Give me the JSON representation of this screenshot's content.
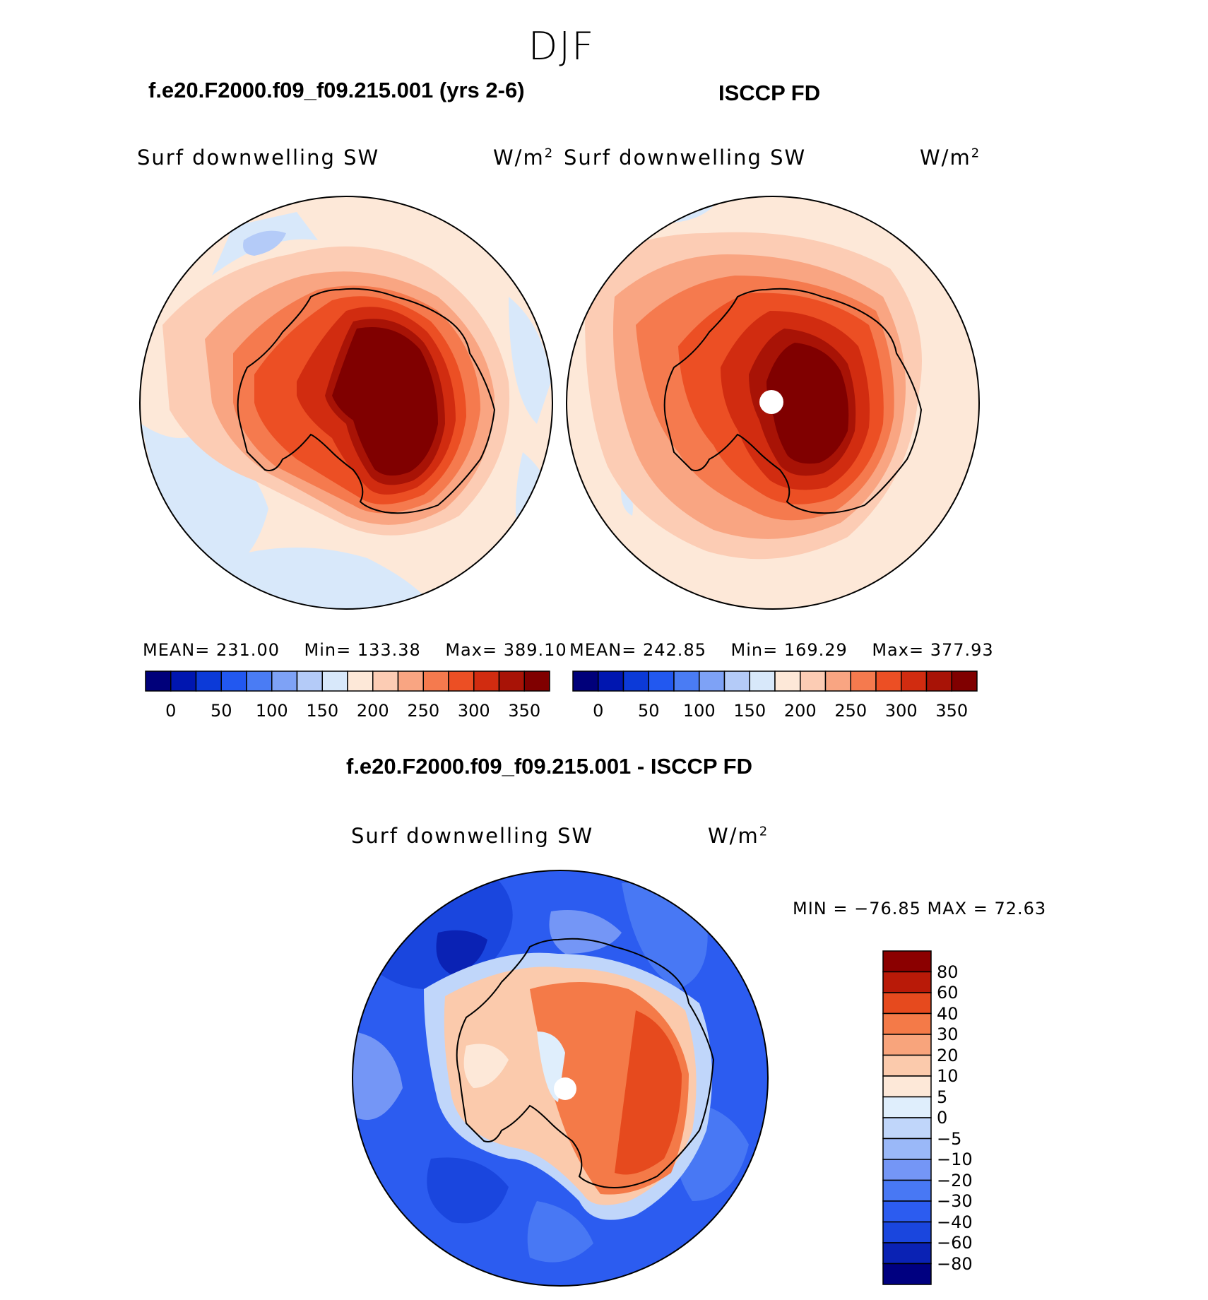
{
  "figure": {
    "season": "DJF"
  },
  "panels": {
    "model": {
      "title": "f.e20.F2000.f09_f09.215.001 (yrs 2-6)",
      "variable": "Surf downwelling SW",
      "units": "W/m",
      "units_exp": "2",
      "mean_label": "MEAN=",
      "mean": "231.00",
      "min_label": "Min=",
      "min": "133.38",
      "max_label": "Max=",
      "max": "389.10"
    },
    "obs": {
      "title": "ISCCP FD",
      "variable": "Surf downwelling SW",
      "units": "W/m",
      "units_exp": "2",
      "mean_label": "MEAN=",
      "mean": "242.85",
      "min_label": "Min=",
      "min": "169.29",
      "max_label": "Max=",
      "max": "377.93"
    },
    "diff": {
      "title": "f.e20.F2000.f09_f09.215.001 - ISCCP FD",
      "variable": "Surf downwelling SW",
      "units": "W/m",
      "units_exp": "2",
      "stats_text": "MIN = −76.85 MAX =   72.63"
    }
  },
  "chart_data": [
    {
      "type": "heatmap",
      "title": "f.e20.F2000.f09_f09.215.001 (yrs 2-6)",
      "projection": "south polar stereographic",
      "variable": "Surf downwelling SW",
      "units": "W/m2",
      "mean": 231.0,
      "min": 133.38,
      "max": 389.1,
      "colorbar": {
        "levels": [
          0,
          25,
          50,
          75,
          100,
          125,
          150,
          175,
          200,
          225,
          250,
          275,
          300,
          325,
          350
        ],
        "tick_labels": [
          "0",
          "50",
          "100",
          "150",
          "200",
          "250",
          "300",
          "350"
        ],
        "colors": [
          "#00007a",
          "#0016b0",
          "#0c3ad8",
          "#2258f0",
          "#4a7cf4",
          "#7ea2f6",
          "#b4cbf8",
          "#d8e8fa",
          "#fde8d8",
          "#fcccb4",
          "#f9a582",
          "#f57a4e",
          "#ec4f24",
          "#d12c10",
          "#a81306",
          "#800000"
        ]
      }
    },
    {
      "type": "heatmap",
      "title": "ISCCP FD",
      "projection": "south polar stereographic",
      "variable": "Surf downwelling SW",
      "units": "W/m2",
      "mean": 242.85,
      "min": 169.29,
      "max": 377.93,
      "colorbar": {
        "levels": [
          0,
          25,
          50,
          75,
          100,
          125,
          150,
          175,
          200,
          225,
          250,
          275,
          300,
          325,
          350
        ],
        "tick_labels": [
          "0",
          "50",
          "100",
          "150",
          "200",
          "250",
          "300",
          "350"
        ],
        "colors": [
          "#00007a",
          "#0016b0",
          "#0c3ad8",
          "#2258f0",
          "#4a7cf4",
          "#7ea2f6",
          "#b4cbf8",
          "#d8e8fa",
          "#fde8d8",
          "#fcccb4",
          "#f9a582",
          "#f57a4e",
          "#ec4f24",
          "#d12c10",
          "#a81306",
          "#800000"
        ]
      }
    },
    {
      "type": "heatmap",
      "title": "f.e20.F2000.f09_f09.215.001 - ISCCP FD",
      "projection": "south polar stereographic",
      "variable": "Surf downwelling SW",
      "units": "W/m2",
      "min": -76.85,
      "max": 72.63,
      "colorbar": {
        "levels": [
          -80,
          -60,
          -40,
          -30,
          -20,
          -10,
          -5,
          0,
          5,
          10,
          20,
          30,
          40,
          60,
          80
        ],
        "tick_labels": [
          "80",
          "60",
          "40",
          "30",
          "20",
          "10",
          "5",
          "0",
          "−5",
          "−10",
          "−20",
          "−30",
          "−40",
          "−60",
          "−80"
        ],
        "colors": [
          "#000080",
          "#0a22b4",
          "#1a46de",
          "#2c5cf0",
          "#4878f4",
          "#7496f6",
          "#9ab8f8",
          "#c0d6fa",
          "#dfeefc",
          "#fde8d8",
          "#fbcaac",
          "#f8a47c",
          "#f47a48",
          "#e64a1e",
          "#b91a08",
          "#8b0000"
        ]
      }
    }
  ]
}
